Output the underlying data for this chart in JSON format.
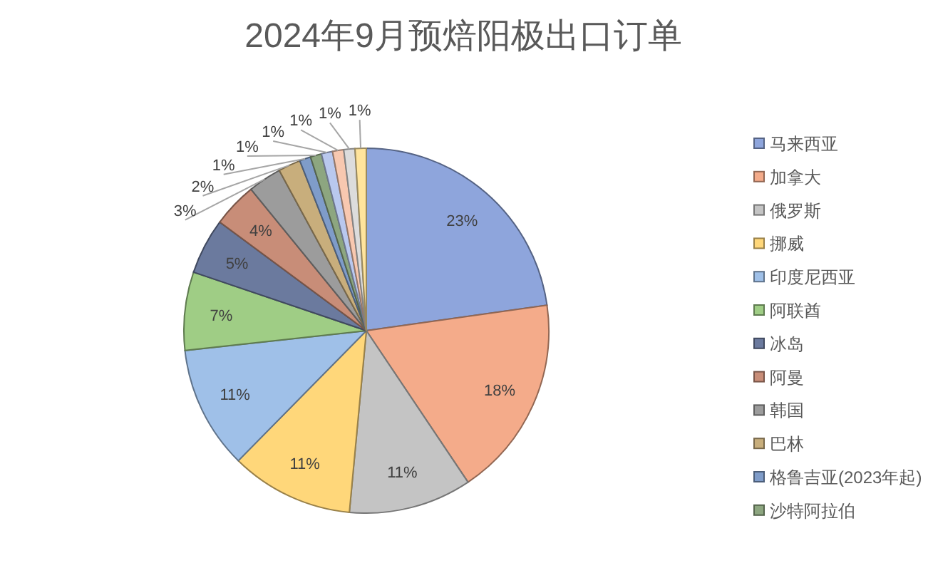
{
  "chart_data": {
    "type": "pie",
    "title": "2024年9月预焙阳极出口订单",
    "categories": [
      "马来西亚",
      "加拿大",
      "俄罗斯",
      "挪威",
      "印度尼西亚",
      "阿联酋",
      "冰岛",
      "阿曼",
      "韩国",
      "巴林",
      "格鲁吉亚(2023年起)",
      "沙特阿拉伯",
      null,
      null,
      null,
      null
    ],
    "values": [
      23,
      18,
      11,
      11,
      11,
      7,
      5,
      4,
      3,
      2,
      1,
      1,
      1,
      1,
      1,
      1
    ],
    "value_labels": [
      "23%",
      "18%",
      "11%",
      "11%",
      "11%",
      "7%",
      "5%",
      "4%",
      "3%",
      "2%",
      "1%",
      "1%",
      "1%",
      "1%",
      "1%",
      "1%"
    ],
    "colors": [
      "#8ea5dc",
      "#f4ab8a",
      "#c4c4c4",
      "#ffd77a",
      "#9fc0e8",
      "#9fcd85",
      "#6b7a9e",
      "#c88d78",
      "#9c9c9c",
      "#c8ae7c",
      "#7f9cc9",
      "#8da680",
      "#b9c8ee",
      "#f8c8b0",
      "#dcdcdc",
      "#ffe49c"
    ],
    "legend": "right"
  }
}
